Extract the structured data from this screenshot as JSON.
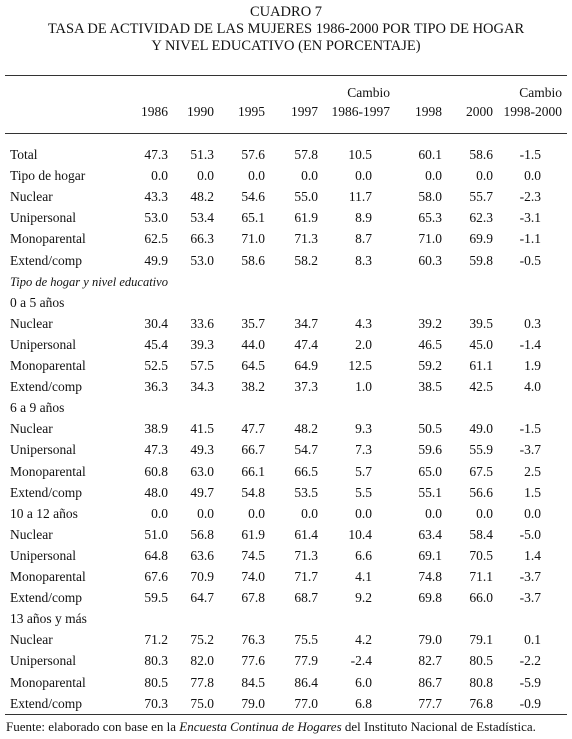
{
  "title": {
    "lines": [
      "CUADRO 7",
      "TASA DE ACTIVIDAD DE LAS MUJERES 1986-2000 POR TIPO DE HOGAR",
      "Y NIVEL EDUCATIVO (EN PORCENTAJE)"
    ]
  },
  "table": {
    "columns": [
      [
        "1986"
      ],
      [
        "1990"
      ],
      [
        "1995"
      ],
      [
        "1997"
      ],
      [
        "Cambio",
        "1986-1997"
      ],
      [
        "1998"
      ],
      [
        "2000"
      ],
      [
        "Cambio",
        "1998-2000"
      ]
    ],
    "rows": [
      {
        "label": "Total",
        "values": [
          "47.3",
          "51.3",
          "57.6",
          "57.8",
          "10.5",
          "60.1",
          "58.6",
          "-1.5"
        ]
      },
      {
        "label": "Tipo de hogar",
        "values": [
          "0.0",
          "0.0",
          "0.0",
          "0.0",
          "0.0",
          "0.0",
          "0.0",
          "0.0"
        ]
      },
      {
        "label": "Nuclear",
        "values": [
          "43.3",
          "48.2",
          "54.6",
          "55.0",
          "11.7",
          "58.0",
          "55.7",
          "-2.3"
        ]
      },
      {
        "label": "Unipersonal",
        "values": [
          "53.0",
          "53.4",
          "65.1",
          "61.9",
          "8.9",
          "65.3",
          "62.3",
          "-3.1"
        ]
      },
      {
        "label": "Monoparental",
        "values": [
          "62.5",
          "66.3",
          "71.0",
          "71.3",
          "8.7",
          "71.0",
          "69.9",
          "-1.1"
        ]
      },
      {
        "label": "Extend/comp",
        "values": [
          "49.9",
          "53.0",
          "58.6",
          "58.2",
          "8.3",
          "60.3",
          "59.8",
          "-0.5"
        ]
      },
      {
        "label": "Tipo de hogar y nivel educativo",
        "italic": true
      },
      {
        "label": "0 a 5 años"
      },
      {
        "label": "Nuclear",
        "values": [
          "30.4",
          "33.6",
          "35.7",
          "34.7",
          "4.3",
          "39.2",
          "39.5",
          "0.3"
        ]
      },
      {
        "label": "Unipersonal",
        "values": [
          "45.4",
          "39.3",
          "44.0",
          "47.4",
          "2.0",
          "46.5",
          "45.0",
          "-1.4"
        ]
      },
      {
        "label": "Monoparental",
        "values": [
          "52.5",
          "57.5",
          "64.5",
          "64.9",
          "12.5",
          "59.2",
          "61.1",
          "1.9"
        ]
      },
      {
        "label": "Extend/comp",
        "values": [
          "36.3",
          "34.3",
          "38.2",
          "37.3",
          "1.0",
          "38.5",
          "42.5",
          "4.0"
        ]
      },
      {
        "label": "6 a 9 años"
      },
      {
        "label": "Nuclear",
        "values": [
          "38.9",
          "41.5",
          "47.7",
          "48.2",
          "9.3",
          "50.5",
          "49.0",
          "-1.5"
        ]
      },
      {
        "label": "Unipersonal",
        "values": [
          "47.3",
          "49.3",
          "66.7",
          "54.7",
          "7.3",
          "59.6",
          "55.9",
          "-3.7"
        ]
      },
      {
        "label": "Monoparental",
        "values": [
          "60.8",
          "63.0",
          "66.1",
          "66.5",
          "5.7",
          "65.0",
          "67.5",
          "2.5"
        ]
      },
      {
        "label": "Extend/comp",
        "values": [
          "48.0",
          "49.7",
          "54.8",
          "53.5",
          "5.5",
          "55.1",
          "56.6",
          "1.5"
        ]
      },
      {
        "label": "10 a 12 años",
        "values": [
          "0.0",
          "0.0",
          "0.0",
          "0.0",
          "0.0",
          "0.0",
          "0.0",
          "0.0"
        ]
      },
      {
        "label": "Nuclear",
        "values": [
          "51.0",
          "56.8",
          "61.9",
          "61.4",
          "10.4",
          "63.4",
          "58.4",
          "-5.0"
        ]
      },
      {
        "label": "Unipersonal",
        "values": [
          "64.8",
          "63.6",
          "74.5",
          "71.3",
          "6.6",
          "69.1",
          "70.5",
          "1.4"
        ]
      },
      {
        "label": "Monoparental",
        "values": [
          "67.6",
          "70.9",
          "74.0",
          "71.7",
          "4.1",
          "74.8",
          "71.1",
          "-3.7"
        ]
      },
      {
        "label": "Extend/comp",
        "values": [
          "59.5",
          "64.7",
          "67.8",
          "68.7",
          "9.2",
          "69.8",
          "66.0",
          "-3.7"
        ]
      },
      {
        "label": "13 años y más"
      },
      {
        "label": "Nuclear",
        "values": [
          "71.2",
          "75.2",
          "76.3",
          "75.5",
          "4.2",
          "79.0",
          "79.1",
          "0.1"
        ]
      },
      {
        "label": "Unipersonal",
        "values": [
          "80.3",
          "82.0",
          "77.6",
          "77.9",
          "-2.4",
          "82.7",
          "80.5",
          "-2.2"
        ]
      },
      {
        "label": "Monoparental",
        "values": [
          "80.5",
          "77.8",
          "84.5",
          "86.4",
          "6.0",
          "86.7",
          "80.8",
          "-5.9"
        ]
      },
      {
        "label": "Extend/comp",
        "values": [
          "70.3",
          "75.0",
          "79.0",
          "77.0",
          "6.8",
          "77.7",
          "76.8",
          "-0.9"
        ]
      }
    ]
  },
  "footer": {
    "parts": [
      "Fuente: elaborado con base en la ",
      "Encuesta Continua de Hogares",
      " del Instituto Nacional de Estadística."
    ]
  }
}
